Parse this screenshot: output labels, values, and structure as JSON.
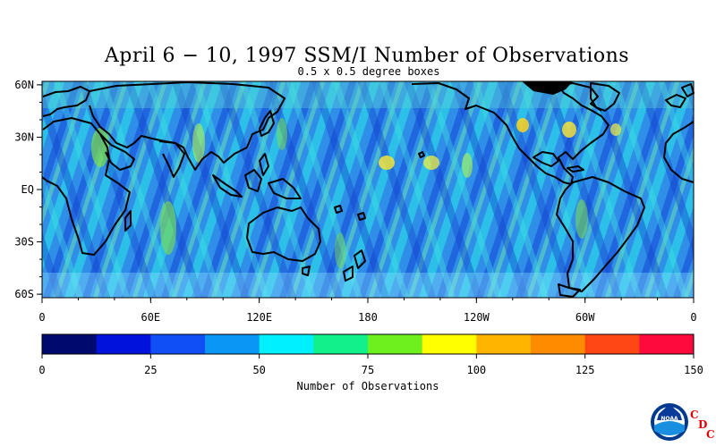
{
  "title": "April 6 − 10, 1997 SSM/I Number of Observations",
  "subtitle": "0.5 x 0.5 degree boxes",
  "map": {
    "lat_labels": [
      "60N",
      "30N",
      "EQ",
      "30S",
      "60S"
    ],
    "lat_values": [
      60,
      30,
      0,
      -30,
      -60
    ],
    "lon_labels": [
      "0",
      "60E",
      "120E",
      "180",
      "120W",
      "60W",
      "0"
    ],
    "lon_values": [
      0,
      60,
      120,
      180,
      240,
      300,
      360
    ]
  },
  "colorbar": {
    "label": "Number of Observations",
    "tick_labels": [
      "0",
      "25",
      "50",
      "75",
      "100",
      "125",
      "150"
    ],
    "tick_values": [
      0,
      25,
      50,
      75,
      100,
      125,
      150
    ],
    "colors": [
      "#000a6e",
      "#0012dc",
      "#0f4ff5",
      "#0a96f5",
      "#00f0ff",
      "#12f08c",
      "#6ef01e",
      "#ffff00",
      "#ffb400",
      "#ff8c00",
      "#ff4614",
      "#ff0a3c"
    ]
  },
  "logo": {
    "emblem_text": "NOAA",
    "letters": [
      "C",
      "D",
      "C"
    ],
    "letter_color": "#e00000"
  }
}
